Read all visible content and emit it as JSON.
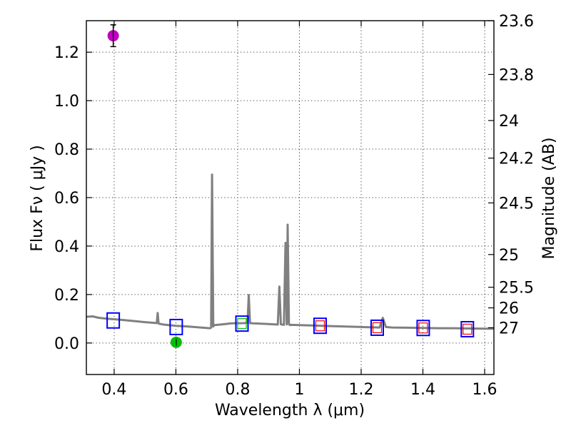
{
  "chart_data": {
    "type": "scatter",
    "xlabel": "Wavelength  λ (μm)",
    "ylabel": "Flux  Fν  ( μJy )",
    "ylabel_right": "Magnitude (AB)",
    "xlim": [
      0.31,
      1.63
    ],
    "ylim": [
      -0.13,
      1.33
    ],
    "grid": true,
    "x_ticks": [
      0.4,
      0.6,
      0.8,
      1.0,
      1.2,
      1.4,
      1.6
    ],
    "x_tick_labels": [
      "0.4",
      "0.6",
      "0.8",
      "1",
      "1.2",
      "1.4",
      "1.6"
    ],
    "y_ticks": [
      0.0,
      0.2,
      0.4,
      0.6,
      0.8,
      1.0,
      1.2
    ],
    "y_tick_labels": [
      "0.0",
      "0.2",
      "0.4",
      "0.6",
      "0.8",
      "1.0",
      "1.2"
    ],
    "right_ticks": [
      {
        "label": "23.6",
        "flux": 1.33
      },
      {
        "label": "23.8",
        "flux": 1.108
      },
      {
        "label": "24",
        "flux": 0.918
      },
      {
        "label": "24.2",
        "flux": 0.763
      },
      {
        "label": "24.5",
        "flux": 0.578
      },
      {
        "label": "25",
        "flux": 0.365
      },
      {
        "label": "25.5",
        "flux": 0.23
      },
      {
        "label": "26",
        "flux": 0.145
      },
      {
        "label": "27",
        "flux": 0.063
      }
    ],
    "model_spectrum": {
      "name": "model SED",
      "color": "#808080",
      "x": [
        0.31,
        0.33,
        0.35,
        0.38,
        0.42,
        0.46,
        0.5,
        0.53,
        0.538,
        0.541,
        0.544,
        0.56,
        0.6,
        0.64,
        0.68,
        0.71,
        0.714,
        0.717,
        0.721,
        0.725,
        0.75,
        0.78,
        0.82,
        0.832,
        0.836,
        0.84,
        0.85,
        0.9,
        0.93,
        0.935,
        0.94,
        0.95,
        0.955,
        0.959,
        0.962,
        0.966,
        0.969,
        0.973,
        1.0,
        1.05,
        1.1,
        1.15,
        1.2,
        1.26,
        1.27,
        1.28,
        1.3,
        1.35,
        1.4,
        1.45,
        1.5,
        1.55,
        1.6,
        1.63
      ],
      "y": [
        0.108,
        0.11,
        0.104,
        0.1,
        0.096,
        0.091,
        0.086,
        0.083,
        0.082,
        0.124,
        0.08,
        0.076,
        0.071,
        0.068,
        0.064,
        0.061,
        0.063,
        0.695,
        0.068,
        0.074,
        0.077,
        0.081,
        0.082,
        0.084,
        0.198,
        0.082,
        0.081,
        0.078,
        0.076,
        0.233,
        0.077,
        0.075,
        0.413,
        0.077,
        0.488,
        0.078,
        0.074,
        0.075,
        0.074,
        0.072,
        0.07,
        0.068,
        0.066,
        0.064,
        0.104,
        0.066,
        0.064,
        0.063,
        0.062,
        0.061,
        0.061,
        0.06,
        0.059,
        0.059
      ]
    },
    "observed": [
      {
        "name": "magenta point",
        "color": "#bf00bf",
        "x": 0.397,
        "y": 1.268,
        "yerr": 0.045
      },
      {
        "name": "green point",
        "color": "#00bf00",
        "x": 0.601,
        "y": 0.003,
        "yerr": 0.015
      }
    ],
    "model_photometry_blue": [
      {
        "x": 0.397,
        "y": 0.093
      },
      {
        "x": 0.601,
        "y": 0.066
      },
      {
        "x": 0.814,
        "y": 0.08
      },
      {
        "x": 1.067,
        "y": 0.071
      },
      {
        "x": 1.252,
        "y": 0.063
      },
      {
        "x": 1.401,
        "y": 0.062
      },
      {
        "x": 1.544,
        "y": 0.057
      }
    ],
    "model_photometry_red": [
      {
        "x": 1.067,
        "y": 0.071
      },
      {
        "x": 1.252,
        "y": 0.063
      },
      {
        "x": 1.401,
        "y": 0.062
      },
      {
        "x": 1.544,
        "y": 0.057
      }
    ],
    "model_photometry_green": [
      {
        "x": 0.814,
        "y": 0.08
      }
    ],
    "colors": {
      "blue_square": "#0000ff",
      "red_square": "#ff0000",
      "green_square": "#00bf00",
      "spectrum": "#808080",
      "axes": "#000000"
    }
  }
}
